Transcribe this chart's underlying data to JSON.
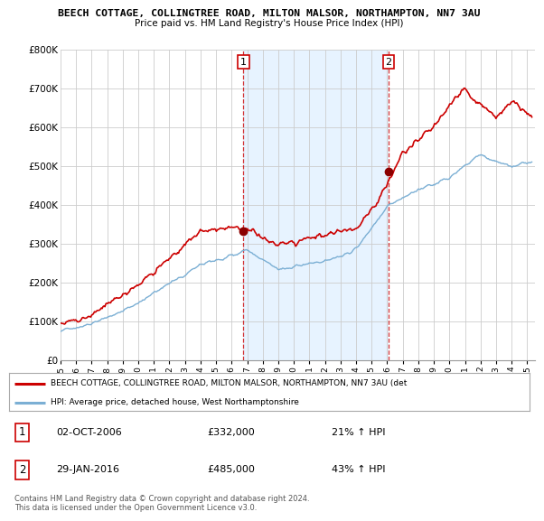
{
  "title1": "BEECH COTTAGE, COLLINGTREE ROAD, MILTON MALSOR, NORTHAMPTON, NN7 3AU",
  "title2": "Price paid vs. HM Land Registry's House Price Index (HPI)",
  "ylim": [
    0,
    800000
  ],
  "yticks": [
    0,
    100000,
    200000,
    300000,
    400000,
    500000,
    600000,
    700000,
    800000
  ],
  "ytick_labels": [
    "£0",
    "£100K",
    "£200K",
    "£300K",
    "£400K",
    "£500K",
    "£600K",
    "£700K",
    "£800K"
  ],
  "sale1_date": 2006.75,
  "sale1_price": 332000,
  "sale1_label": "1",
  "sale2_date": 2016.08,
  "sale2_price": 485000,
  "sale2_label": "2",
  "legend_line1": "BEECH COTTAGE, COLLINGTREE ROAD, MILTON MALSOR, NORTHAMPTON, NN7 3AU (det",
  "legend_line2": "HPI: Average price, detached house, West Northamptonshire",
  "table_row1": [
    "1",
    "02-OCT-2006",
    "£332,000",
    "21% ↑ HPI"
  ],
  "table_row2": [
    "2",
    "29-JAN-2016",
    "£485,000",
    "43% ↑ HPI"
  ],
  "footer": "Contains HM Land Registry data © Crown copyright and database right 2024.\nThis data is licensed under the Open Government Licence v3.0.",
  "hpi_color": "#7bafd4",
  "price_color": "#cc0000",
  "shade_color": "#ddeeff",
  "bg_color": "#ffffff",
  "grid_color": "#cccccc",
  "xlim_start": 1995,
  "xlim_end": 2025.5
}
